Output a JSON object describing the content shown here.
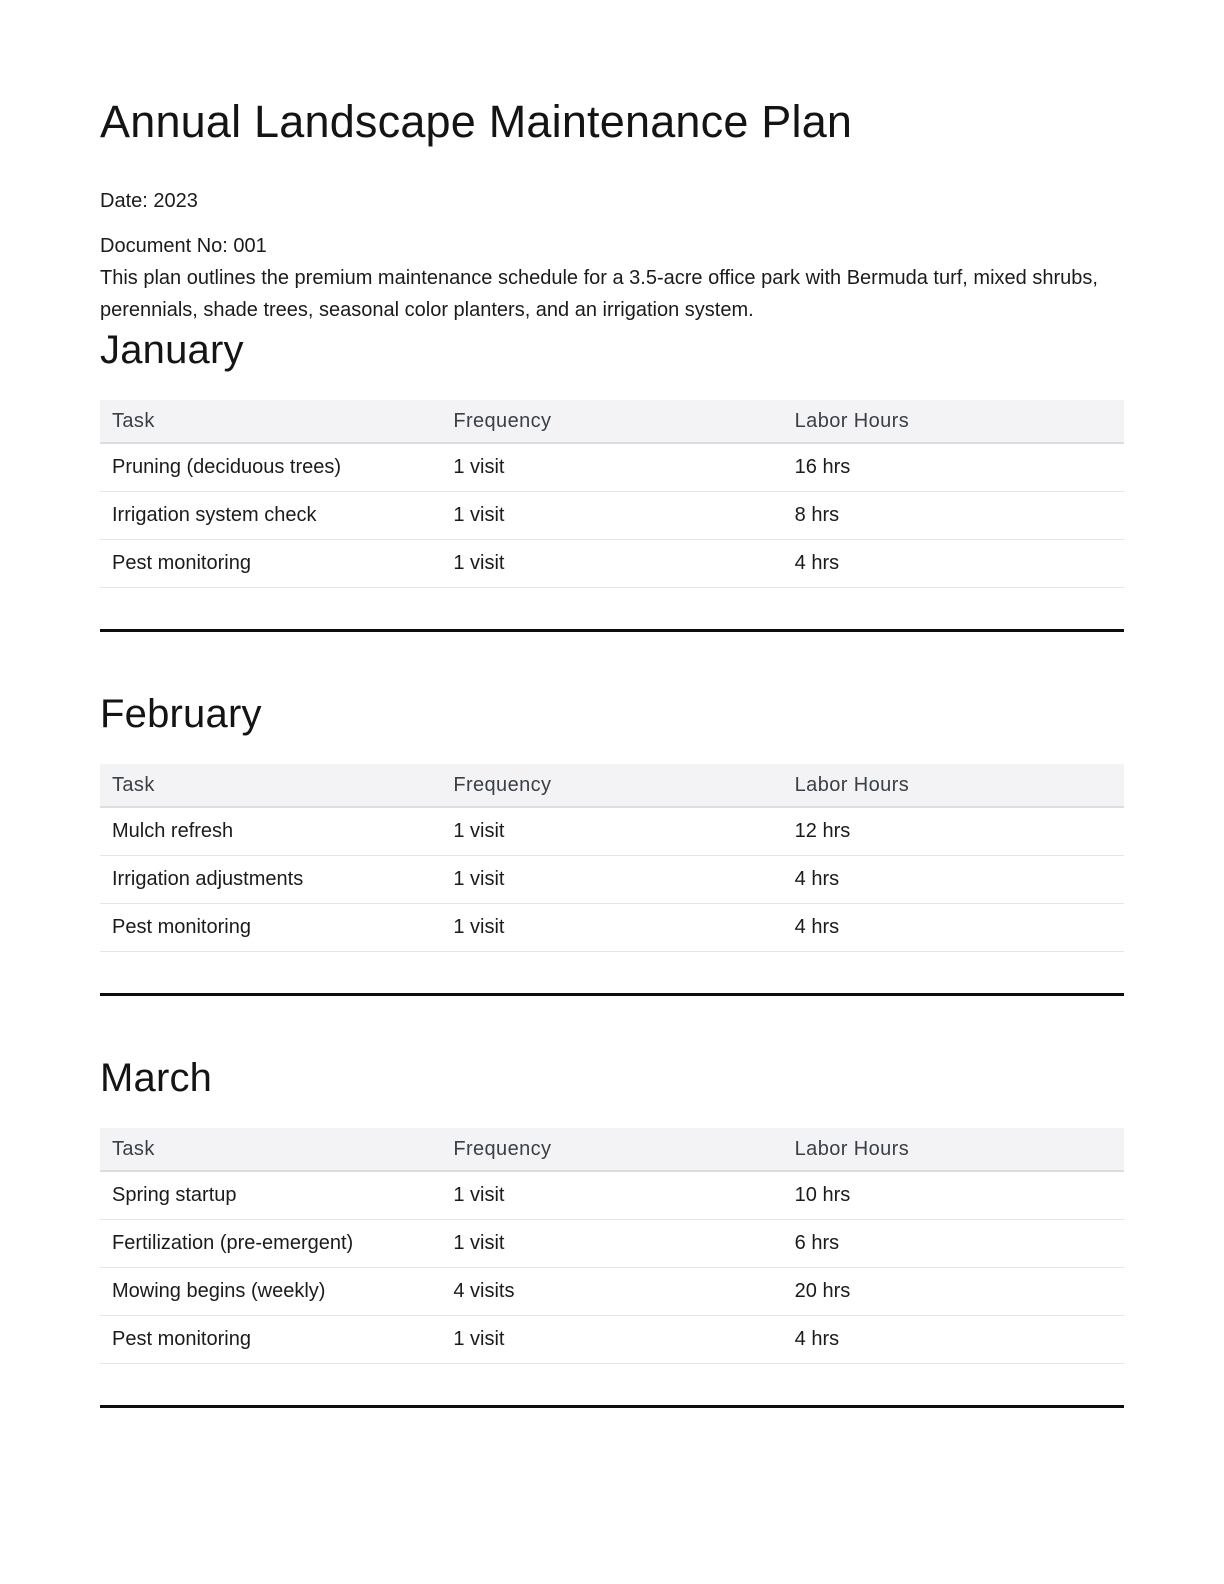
{
  "document": {
    "title": "Annual Landscape Maintenance Plan",
    "date_line": "Date: 2023",
    "doc_no_line": "Document No: 001",
    "description": "This plan outlines the premium maintenance schedule for a 3.5-acre office park with Bermuda turf, mixed shrubs, perennials, shade trees, seasonal color planters, and an irrigation system."
  },
  "table_headers": {
    "task": "Task",
    "frequency": "Frequency",
    "labor_hours": "Labor Hours"
  },
  "sections": [
    {
      "month": "January",
      "rows": [
        {
          "task": "Pruning (deciduous trees)",
          "frequency": "1 visit",
          "labor_hours": "16 hrs"
        },
        {
          "task": "Irrigation system check",
          "frequency": "1 visit",
          "labor_hours": "8 hrs"
        },
        {
          "task": "Pest monitoring",
          "frequency": "1 visit",
          "labor_hours": "4 hrs"
        }
      ]
    },
    {
      "month": "February",
      "rows": [
        {
          "task": "Mulch refresh",
          "frequency": "1 visit",
          "labor_hours": "12 hrs"
        },
        {
          "task": "Irrigation adjustments",
          "frequency": "1 visit",
          "labor_hours": "4 hrs"
        },
        {
          "task": "Pest monitoring",
          "frequency": "1 visit",
          "labor_hours": "4 hrs"
        }
      ]
    },
    {
      "month": "March",
      "rows": [
        {
          "task": "Spring startup",
          "frequency": "1 visit",
          "labor_hours": "10 hrs"
        },
        {
          "task": "Fertilization (pre-emergent)",
          "frequency": "1 visit",
          "labor_hours": "6 hrs"
        },
        {
          "task": "Mowing begins (weekly)",
          "frequency": "4 visits",
          "labor_hours": "20 hrs"
        },
        {
          "task": "Pest monitoring",
          "frequency": "1 visit",
          "labor_hours": "4 hrs"
        }
      ]
    }
  ],
  "colors": {
    "table_header_bg": "#f3f3f5",
    "table_header_text": "#3a4047",
    "row_border": "#e6e6e7",
    "header_border": "#dcdddf",
    "section_rule": "#0d0d0d",
    "body_text": "#1b1b1b"
  }
}
